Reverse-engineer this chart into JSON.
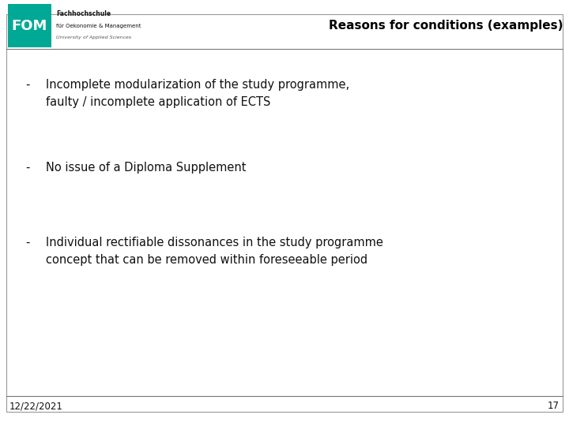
{
  "title": "Reasons for conditions (examples)",
  "title_fontsize": 11,
  "title_color": "#000000",
  "background_color": "#ffffff",
  "border_color": "#999999",
  "teal_color": "#00a896",
  "fom_text_line1": "Fachhochschule",
  "fom_text_line2": "für Oekonomie & Management",
  "fom_text_line3": "University of Applied Sciences",
  "fom_logo_text": "FOM",
  "bullet_points": [
    {
      "dash": "-",
      "line1": "Incomplete modularization of the study programme,",
      "line2": "faulty / incomplete application of ECTS"
    },
    {
      "dash": "-",
      "line1": "No issue of a Diploma Supplement",
      "line2": ""
    },
    {
      "dash": "-",
      "line1": "Individual rectifiable dissonances in the study programme",
      "line2": "concept that can be removed within foreseeable period"
    }
  ],
  "footer_date": "12/22/2021",
  "footer_page": "17",
  "body_fontsize": 10.5,
  "footer_fontsize": 8.5,
  "header_line_color": "#777777",
  "footer_line_color": "#777777"
}
